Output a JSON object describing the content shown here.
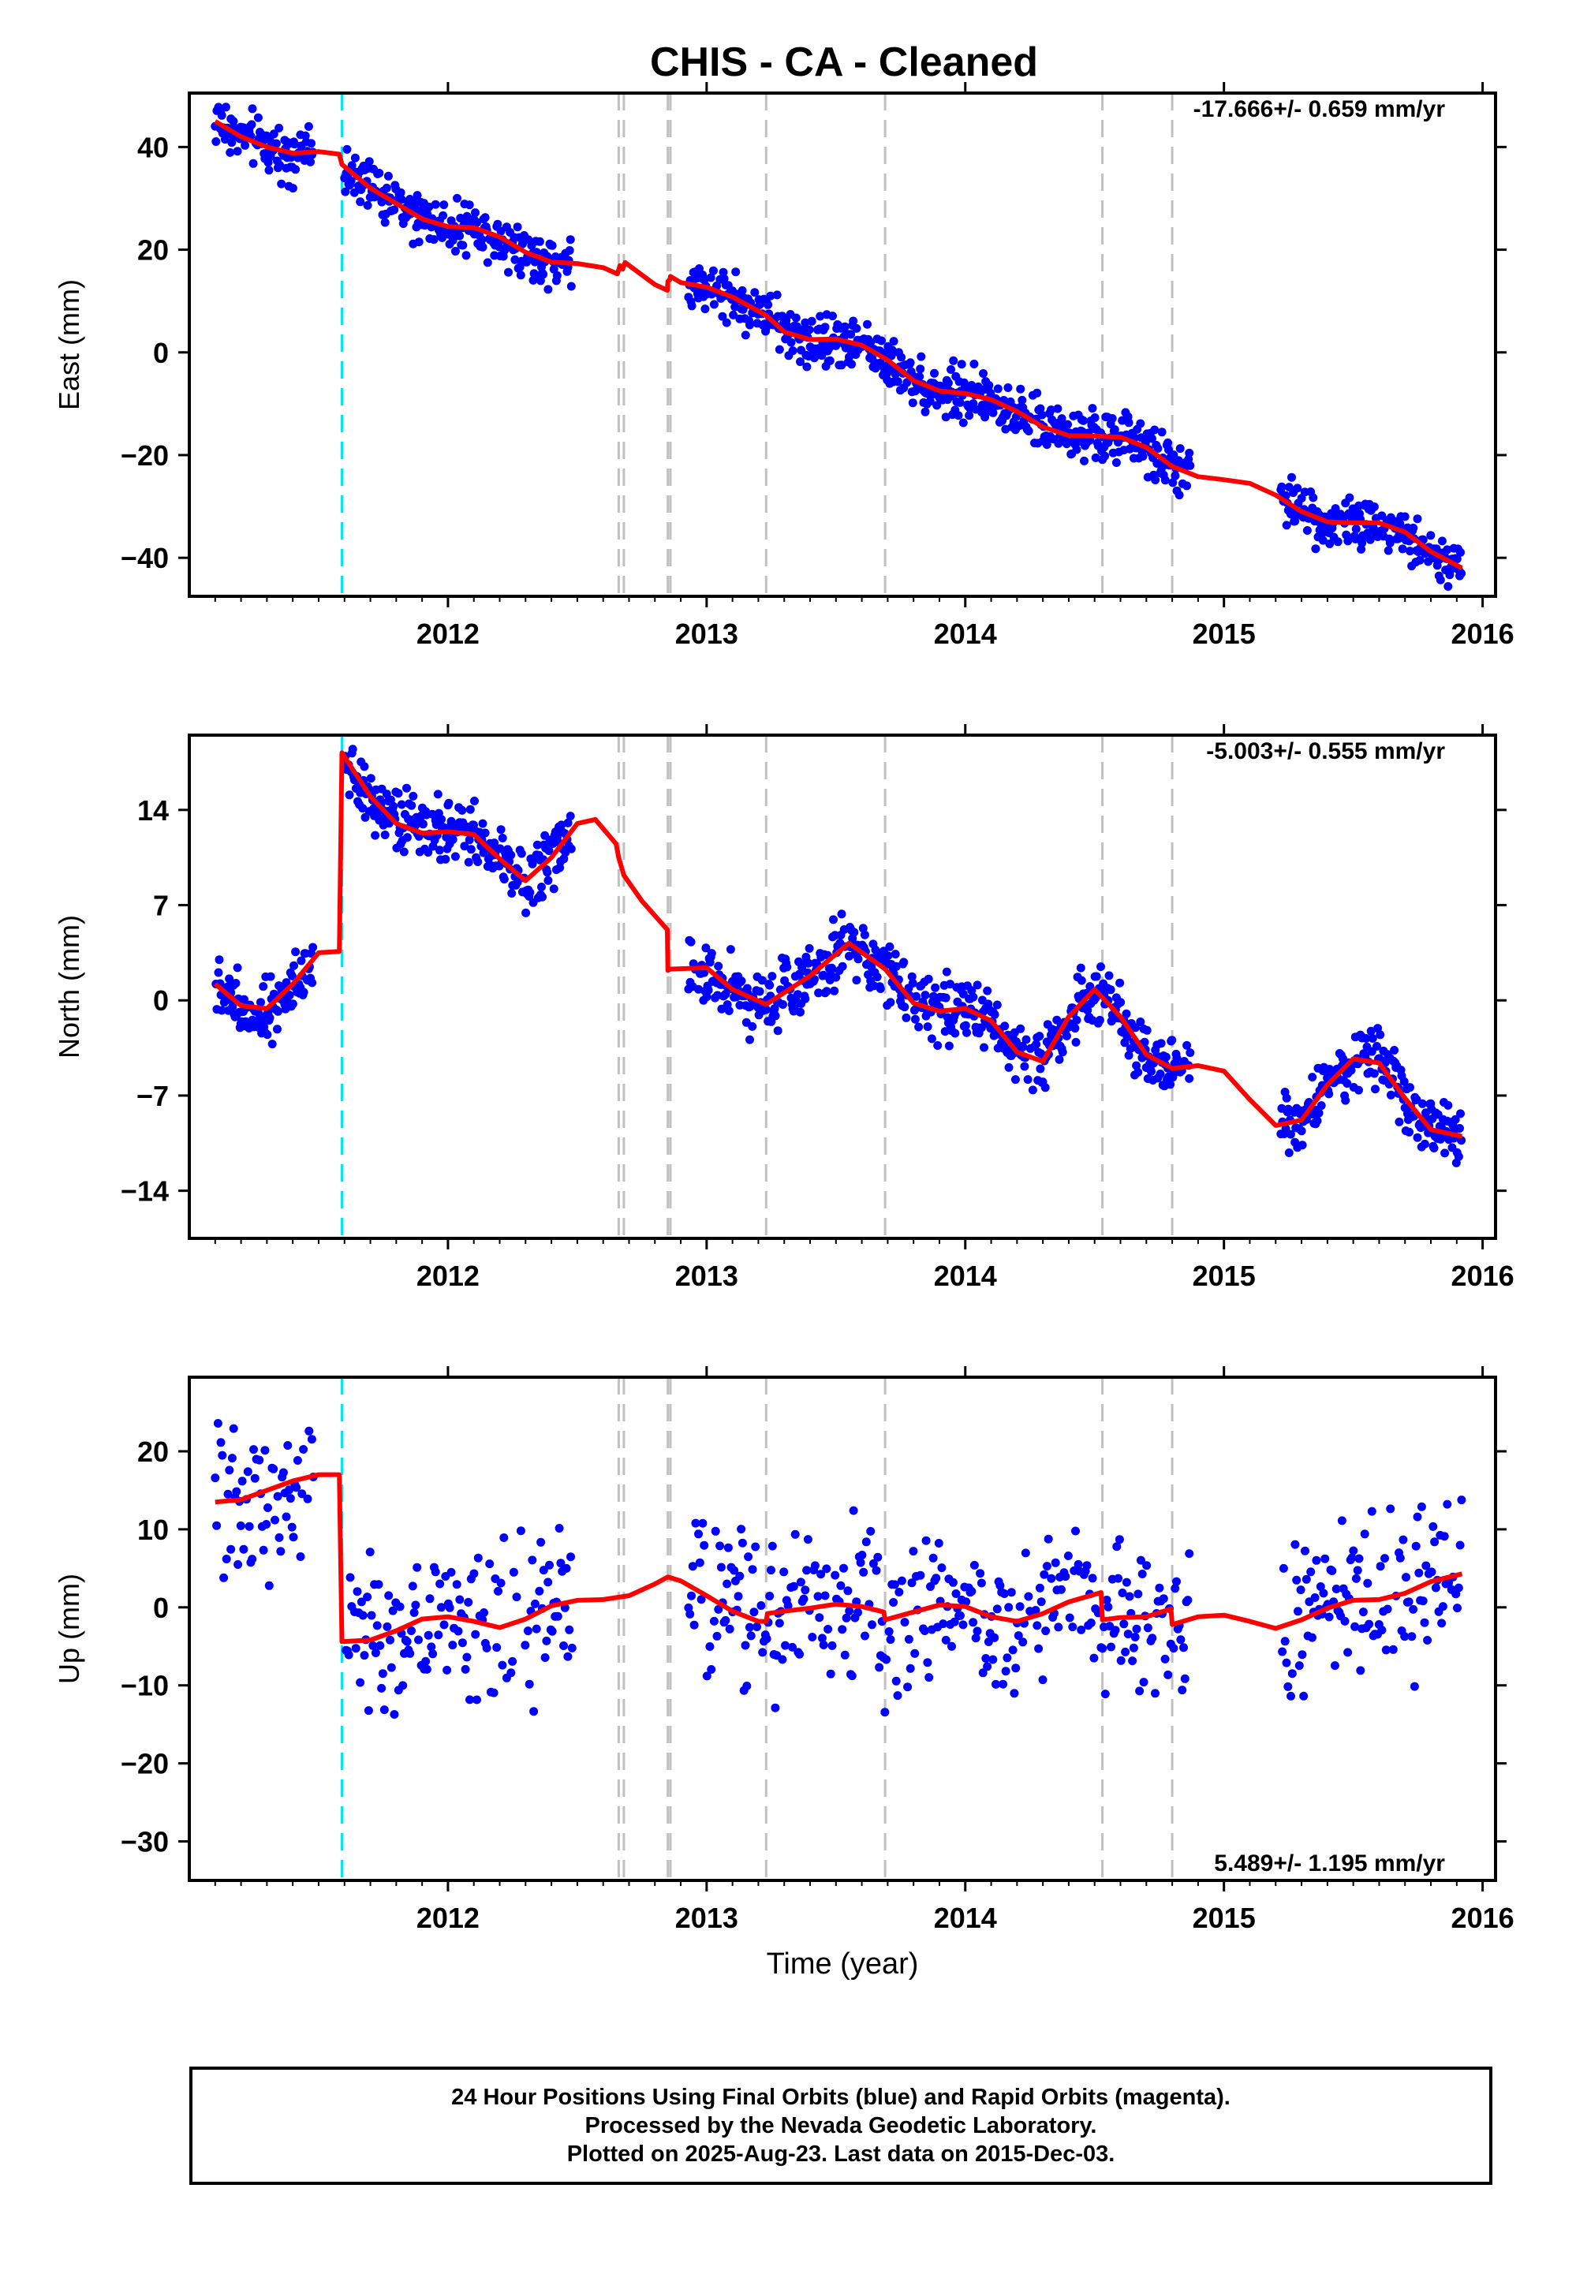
{
  "title": "CHIS  - CA - Cleaned",
  "footer": {
    "line1": "24 Hour Positions Using Final Orbits (blue) and Rapid Orbits (magenta).",
    "line2": "Processed by the Nevada Geodetic Laboratory.",
    "line3": "Plotted on 2025-Aug-23. Last data on 2015-Dec-03."
  },
  "colors": {
    "data_points": "#0000ff",
    "model_line": "#ff0000",
    "equipment_change_line": "#00e5ee",
    "earthquake_line": "#c0c0c0"
  },
  "chart_data": [
    {
      "type": "scatter",
      "name": "east",
      "ylabel": "East (mm)",
      "xlabel": "",
      "rate": "-17.666+/- 0.659 mm/yr",
      "xlim": [
        2011.0,
        2016.05
      ],
      "ylim": [
        -47.5,
        50.5
      ],
      "xticks": [
        2012,
        2013,
        2014,
        2015,
        2016
      ],
      "yticks": [
        -40,
        -20,
        0,
        20,
        40
      ],
      "ytick_labels": [
        "−40",
        "−20",
        "0",
        "20",
        "40"
      ],
      "cyan_dashed_x": [
        2011.59
      ],
      "gray_dashed_x": [
        2012.66,
        2012.68,
        2012.85,
        2012.86,
        2013.23,
        2013.69,
        2014.53,
        2014.8
      ],
      "model": [
        [
          2011.1,
          45
        ],
        [
          2011.2,
          42
        ],
        [
          2011.3,
          40
        ],
        [
          2011.4,
          38.8
        ],
        [
          2011.5,
          39.1
        ],
        [
          2011.58,
          38.6
        ],
        [
          2011.59,
          36.6
        ],
        [
          2011.7,
          32
        ],
        [
          2011.8,
          29
        ],
        [
          2011.9,
          26
        ],
        [
          2012.0,
          24.5
        ],
        [
          2012.1,
          24.3
        ],
        [
          2012.2,
          22.5
        ],
        [
          2012.3,
          19.5
        ],
        [
          2012.4,
          17.6
        ],
        [
          2012.5,
          17.3
        ],
        [
          2012.6,
          16.5
        ],
        [
          2012.655,
          15.3
        ],
        [
          2012.665,
          16.9
        ],
        [
          2012.675,
          16.2
        ],
        [
          2012.685,
          17.5
        ],
        [
          2012.8,
          13.2
        ],
        [
          2012.848,
          12.1
        ],
        [
          2012.85,
          13.8
        ],
        [
          2012.858,
          14.2
        ],
        [
          2012.86,
          14.8
        ],
        [
          2012.9,
          13.6
        ],
        [
          2013.0,
          12.7
        ],
        [
          2013.1,
          10.8
        ],
        [
          2013.23,
          7.2
        ],
        [
          2013.3,
          4
        ],
        [
          2013.4,
          2.5
        ],
        [
          2013.5,
          2.6
        ],
        [
          2013.6,
          1.4
        ],
        [
          2013.7,
          -1.5
        ],
        [
          2013.8,
          -5.5
        ],
        [
          2013.9,
          -7.5
        ],
        [
          2014.0,
          -8.0
        ],
        [
          2014.1,
          -9.2
        ],
        [
          2014.2,
          -11.5
        ],
        [
          2014.3,
          -14.5
        ],
        [
          2014.4,
          -16.2
        ],
        [
          2014.5,
          -16.3
        ],
        [
          2014.6,
          -16.5
        ],
        [
          2014.7,
          -18.5
        ],
        [
          2014.8,
          -22.2
        ],
        [
          2014.9,
          -24.2
        ],
        [
          2015.0,
          -24.8
        ],
        [
          2015.1,
          -25.5
        ],
        [
          2015.2,
          -27.8
        ],
        [
          2015.3,
          -31
        ],
        [
          2015.4,
          -33
        ],
        [
          2015.5,
          -33.2
        ],
        [
          2015.6,
          -33.2
        ],
        [
          2015.7,
          -35
        ],
        [
          2015.8,
          -38.8
        ],
        [
          2015.92,
          -42
        ]
      ],
      "point_segments": [
        {
          "x_range": [
            2011.1,
            2011.48
          ],
          "spread": 3.5
        },
        {
          "x_range": [
            2011.6,
            2012.48
          ],
          "spread": 3.5
        },
        {
          "x_range": [
            2012.93,
            2014.87
          ],
          "spread": 3.5
        },
        {
          "x_range": [
            2015.22,
            2015.92
          ],
          "spread": 3.5
        }
      ]
    },
    {
      "type": "scatter",
      "name": "north",
      "ylabel": "North (mm)",
      "xlabel": "",
      "rate": "-5.003+/- 0.555 mm/yr",
      "xlim": [
        2011.0,
        2016.05
      ],
      "ylim": [
        -17.5,
        19.5
      ],
      "xticks": [
        2012,
        2013,
        2014,
        2015,
        2016
      ],
      "yticks": [
        -14,
        -7,
        0,
        7,
        14
      ],
      "ytick_labels": [
        "−14",
        "−7",
        "0",
        "7",
        "14"
      ],
      "cyan_dashed_x": [
        2011.59
      ],
      "gray_dashed_x": [
        2012.66,
        2012.68,
        2012.85,
        2012.86,
        2013.23,
        2013.69,
        2014.53,
        2014.8
      ],
      "model": [
        [
          2011.1,
          1.2
        ],
        [
          2011.2,
          -0.4
        ],
        [
          2011.3,
          -0.6
        ],
        [
          2011.4,
          1.2
        ],
        [
          2011.5,
          3.5
        ],
        [
          2011.58,
          3.6
        ],
        [
          2011.59,
          18.2
        ],
        [
          2011.7,
          15
        ],
        [
          2011.8,
          13
        ],
        [
          2011.9,
          12.3
        ],
        [
          2012.0,
          12.4
        ],
        [
          2012.1,
          12.2
        ],
        [
          2012.2,
          10.4
        ],
        [
          2012.3,
          8.8
        ],
        [
          2012.4,
          10.5
        ],
        [
          2012.5,
          13
        ],
        [
          2012.57,
          13.3
        ],
        [
          2012.65,
          11.5
        ],
        [
          2012.66,
          10.5
        ],
        [
          2012.68,
          9.2
        ],
        [
          2012.75,
          7.3
        ],
        [
          2012.848,
          5.2
        ],
        [
          2012.85,
          2.2
        ],
        [
          2012.86,
          2.3
        ],
        [
          2013.0,
          2.4
        ],
        [
          2013.1,
          0.8
        ],
        [
          2013.23,
          -0.3
        ],
        [
          2013.4,
          1.8
        ],
        [
          2013.55,
          4.2
        ],
        [
          2013.69,
          2.3
        ],
        [
          2013.8,
          -0.2
        ],
        [
          2013.9,
          -0.8
        ],
        [
          2014.0,
          -0.6
        ],
        [
          2014.1,
          -1.5
        ],
        [
          2014.2,
          -3.8
        ],
        [
          2014.3,
          -4.5
        ],
        [
          2014.4,
          -1.2
        ],
        [
          2014.5,
          0.8
        ],
        [
          2014.6,
          -1.2
        ],
        [
          2014.7,
          -4.0
        ],
        [
          2014.8,
          -5.0
        ],
        [
          2014.9,
          -4.8
        ],
        [
          2015.0,
          -5.2
        ],
        [
          2015.1,
          -7.3
        ],
        [
          2015.2,
          -9.2
        ],
        [
          2015.3,
          -8.8
        ],
        [
          2015.4,
          -6.2
        ],
        [
          2015.5,
          -4.3
        ],
        [
          2015.6,
          -4.6
        ],
        [
          2015.7,
          -7.2
        ],
        [
          2015.8,
          -9.5
        ],
        [
          2015.92,
          -10.0
        ]
      ],
      "point_segments": [
        {
          "x_range": [
            2011.1,
            2011.48
          ],
          "spread": 1.6
        },
        {
          "x_range": [
            2011.6,
            2012.48
          ],
          "spread": 1.6
        },
        {
          "x_range": [
            2012.93,
            2014.87
          ],
          "spread": 1.6
        },
        {
          "x_range": [
            2015.22,
            2015.92
          ],
          "spread": 1.6
        }
      ]
    },
    {
      "type": "scatter",
      "name": "up",
      "ylabel": "Up (mm)",
      "xlabel": "Time (year)",
      "rate": "5.489+/- 1.195 mm/yr",
      "xlim": [
        2011.0,
        2016.05
      ],
      "ylim": [
        -35,
        29.5
      ],
      "xticks": [
        2012,
        2013,
        2014,
        2015,
        2016
      ],
      "yticks": [
        -30,
        -20,
        -10,
        0,
        10,
        20
      ],
      "ytick_labels": [
        "−30",
        "−20",
        "−10",
        "0",
        "10",
        "20"
      ],
      "cyan_dashed_x": [
        2011.59
      ],
      "gray_dashed_x": [
        2012.66,
        2012.68,
        2012.85,
        2012.86,
        2013.23,
        2013.69,
        2014.53,
        2014.8
      ],
      "model": [
        [
          2011.1,
          13.5
        ],
        [
          2011.2,
          13.8
        ],
        [
          2011.3,
          15
        ],
        [
          2011.4,
          16.2
        ],
        [
          2011.5,
          17
        ],
        [
          2011.58,
          17
        ],
        [
          2011.59,
          -4.4
        ],
        [
          2011.7,
          -4.2
        ],
        [
          2011.8,
          -3
        ],
        [
          2011.9,
          -1.5
        ],
        [
          2012.0,
          -1.2
        ],
        [
          2012.1,
          -1.8
        ],
        [
          2012.2,
          -2.6
        ],
        [
          2012.3,
          -1.5
        ],
        [
          2012.4,
          0.2
        ],
        [
          2012.5,
          0.9
        ],
        [
          2012.6,
          1.0
        ],
        [
          2012.7,
          1.5
        ],
        [
          2012.8,
          3.0
        ],
        [
          2012.85,
          3.9
        ],
        [
          2012.9,
          3.4
        ],
        [
          2013.0,
          1.5
        ],
        [
          2013.1,
          -0.5
        ],
        [
          2013.2,
          -1.8
        ],
        [
          2013.23,
          -1.8
        ],
        [
          2013.235,
          -0.8
        ],
        [
          2013.3,
          -0.5
        ],
        [
          2013.4,
          -0.1
        ],
        [
          2013.5,
          0.4
        ],
        [
          2013.6,
          0.1
        ],
        [
          2013.685,
          -0.6
        ],
        [
          2013.69,
          -1.6
        ],
        [
          2013.8,
          -0.6
        ],
        [
          2013.9,
          0.3
        ],
        [
          2014.0,
          0.1
        ],
        [
          2014.1,
          -1.2
        ],
        [
          2014.2,
          -1.8
        ],
        [
          2014.3,
          -0.8
        ],
        [
          2014.4,
          0.7
        ],
        [
          2014.525,
          1.9
        ],
        [
          2014.53,
          -1.6
        ],
        [
          2014.6,
          -1.3
        ],
        [
          2014.7,
          -1.2
        ],
        [
          2014.795,
          -0.2
        ],
        [
          2014.8,
          -2.2
        ],
        [
          2014.9,
          -1.2
        ],
        [
          2015.0,
          -1.0
        ],
        [
          2015.1,
          -1.8
        ],
        [
          2015.2,
          -2.7
        ],
        [
          2015.3,
          -1.6
        ],
        [
          2015.4,
          -0.1
        ],
        [
          2015.5,
          0.9
        ],
        [
          2015.6,
          1.0
        ],
        [
          2015.7,
          1.8
        ],
        [
          2015.8,
          3.3
        ],
        [
          2015.92,
          4.3
        ]
      ],
      "point_segments": [
        {
          "x_range": [
            2011.1,
            2011.48
          ],
          "spread": 7
        },
        {
          "x_range": [
            2011.6,
            2012.48
          ],
          "spread": 7
        },
        {
          "x_range": [
            2012.93,
            2014.87
          ],
          "spread": 7
        },
        {
          "x_range": [
            2015.22,
            2015.92
          ],
          "spread": 7
        }
      ]
    }
  ]
}
